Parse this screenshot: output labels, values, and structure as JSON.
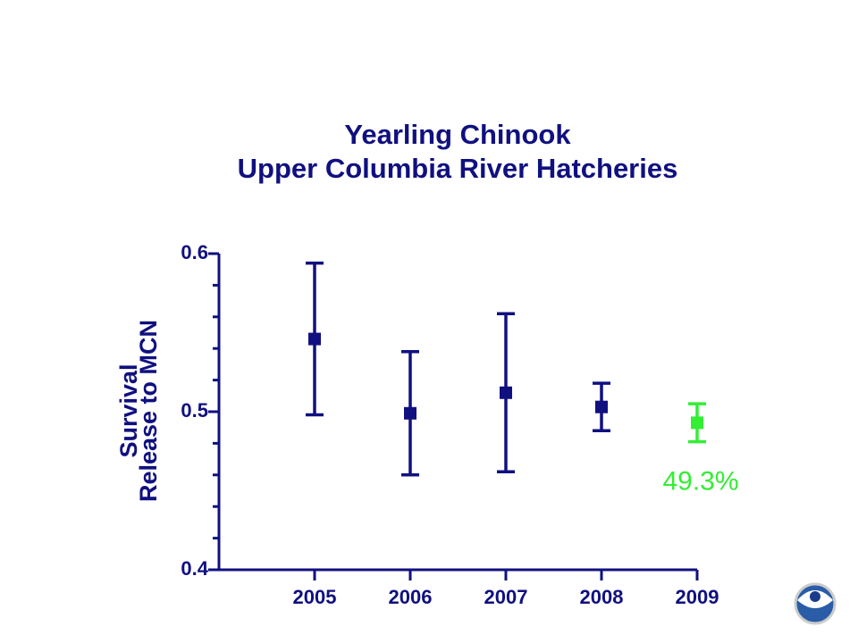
{
  "chart_data": {
    "type": "errorbar",
    "title": [
      "Yearling Chinook",
      "Upper  Columbia River Hatcheries"
    ],
    "y_label": [
      "Survival",
      "Release to MCN"
    ],
    "x": [
      2005,
      2006,
      2007,
      2008,
      2009
    ],
    "xlim": [
      2004,
      2009
    ],
    "xticks": [
      2005,
      2006,
      2007,
      2008,
      2009
    ],
    "ylim": [
      0.4,
      0.6
    ],
    "yticks": [
      0.4,
      0.5,
      0.6
    ],
    "yminor_ticks": [
      0.42,
      0.44,
      0.46,
      0.48,
      0.52,
      0.54,
      0.56,
      0.58
    ],
    "series": [
      {
        "values": [
          0.546,
          0.499,
          0.512,
          0.503,
          0.493
        ],
        "errors": [
          0.048,
          0.039,
          0.05,
          0.015,
          0.012
        ],
        "colors": [
          "#101080",
          "#101080",
          "#101080",
          "#101080",
          "#33ee33"
        ],
        "value_labels": [
          null,
          null,
          null,
          null,
          "49.3%"
        ]
      }
    ],
    "color": "#101080"
  }
}
